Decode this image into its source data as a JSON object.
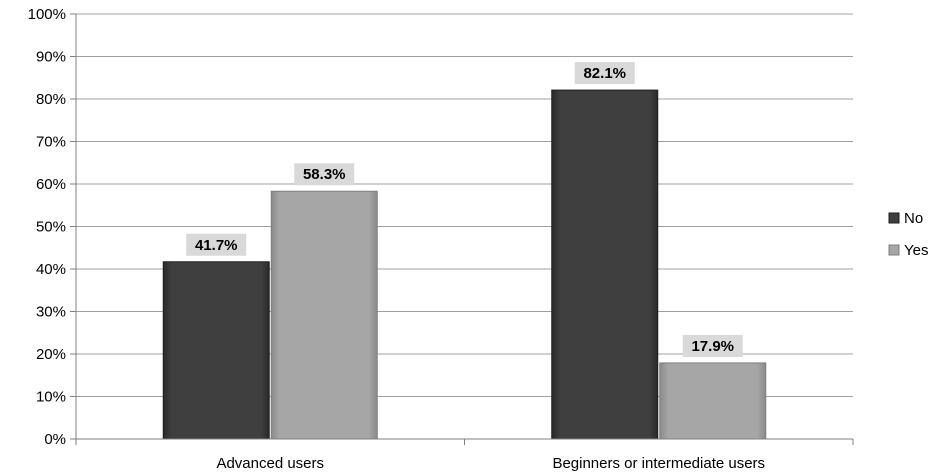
{
  "chart_data": {
    "type": "bar",
    "categories": [
      "Advanced users",
      "Beginners or intermediate users"
    ],
    "series": [
      {
        "name": "No",
        "values": [
          41.7,
          82.1
        ],
        "color": "#3f3f3f"
      },
      {
        "name": "Yes",
        "values": [
          58.3,
          17.9
        ],
        "color": "#a6a6a6"
      }
    ],
    "data_labels": [
      [
        "41.7%",
        "82.1%"
      ],
      [
        "58.3%",
        "17.9%"
      ]
    ],
    "ylim": [
      0,
      100
    ],
    "ytick_step": 10,
    "ytick_labels": [
      "0%",
      "10%",
      "20%",
      "30%",
      "40%",
      "50%",
      "60%",
      "70%",
      "80%",
      "90%",
      "100%"
    ],
    "title": "",
    "xlabel": "",
    "ylabel": "",
    "grid": true,
    "legend_position": "right",
    "colors": {
      "grid": "#a0a0a0",
      "axis": "#808080",
      "label_bg": "#d9d9d9"
    }
  }
}
